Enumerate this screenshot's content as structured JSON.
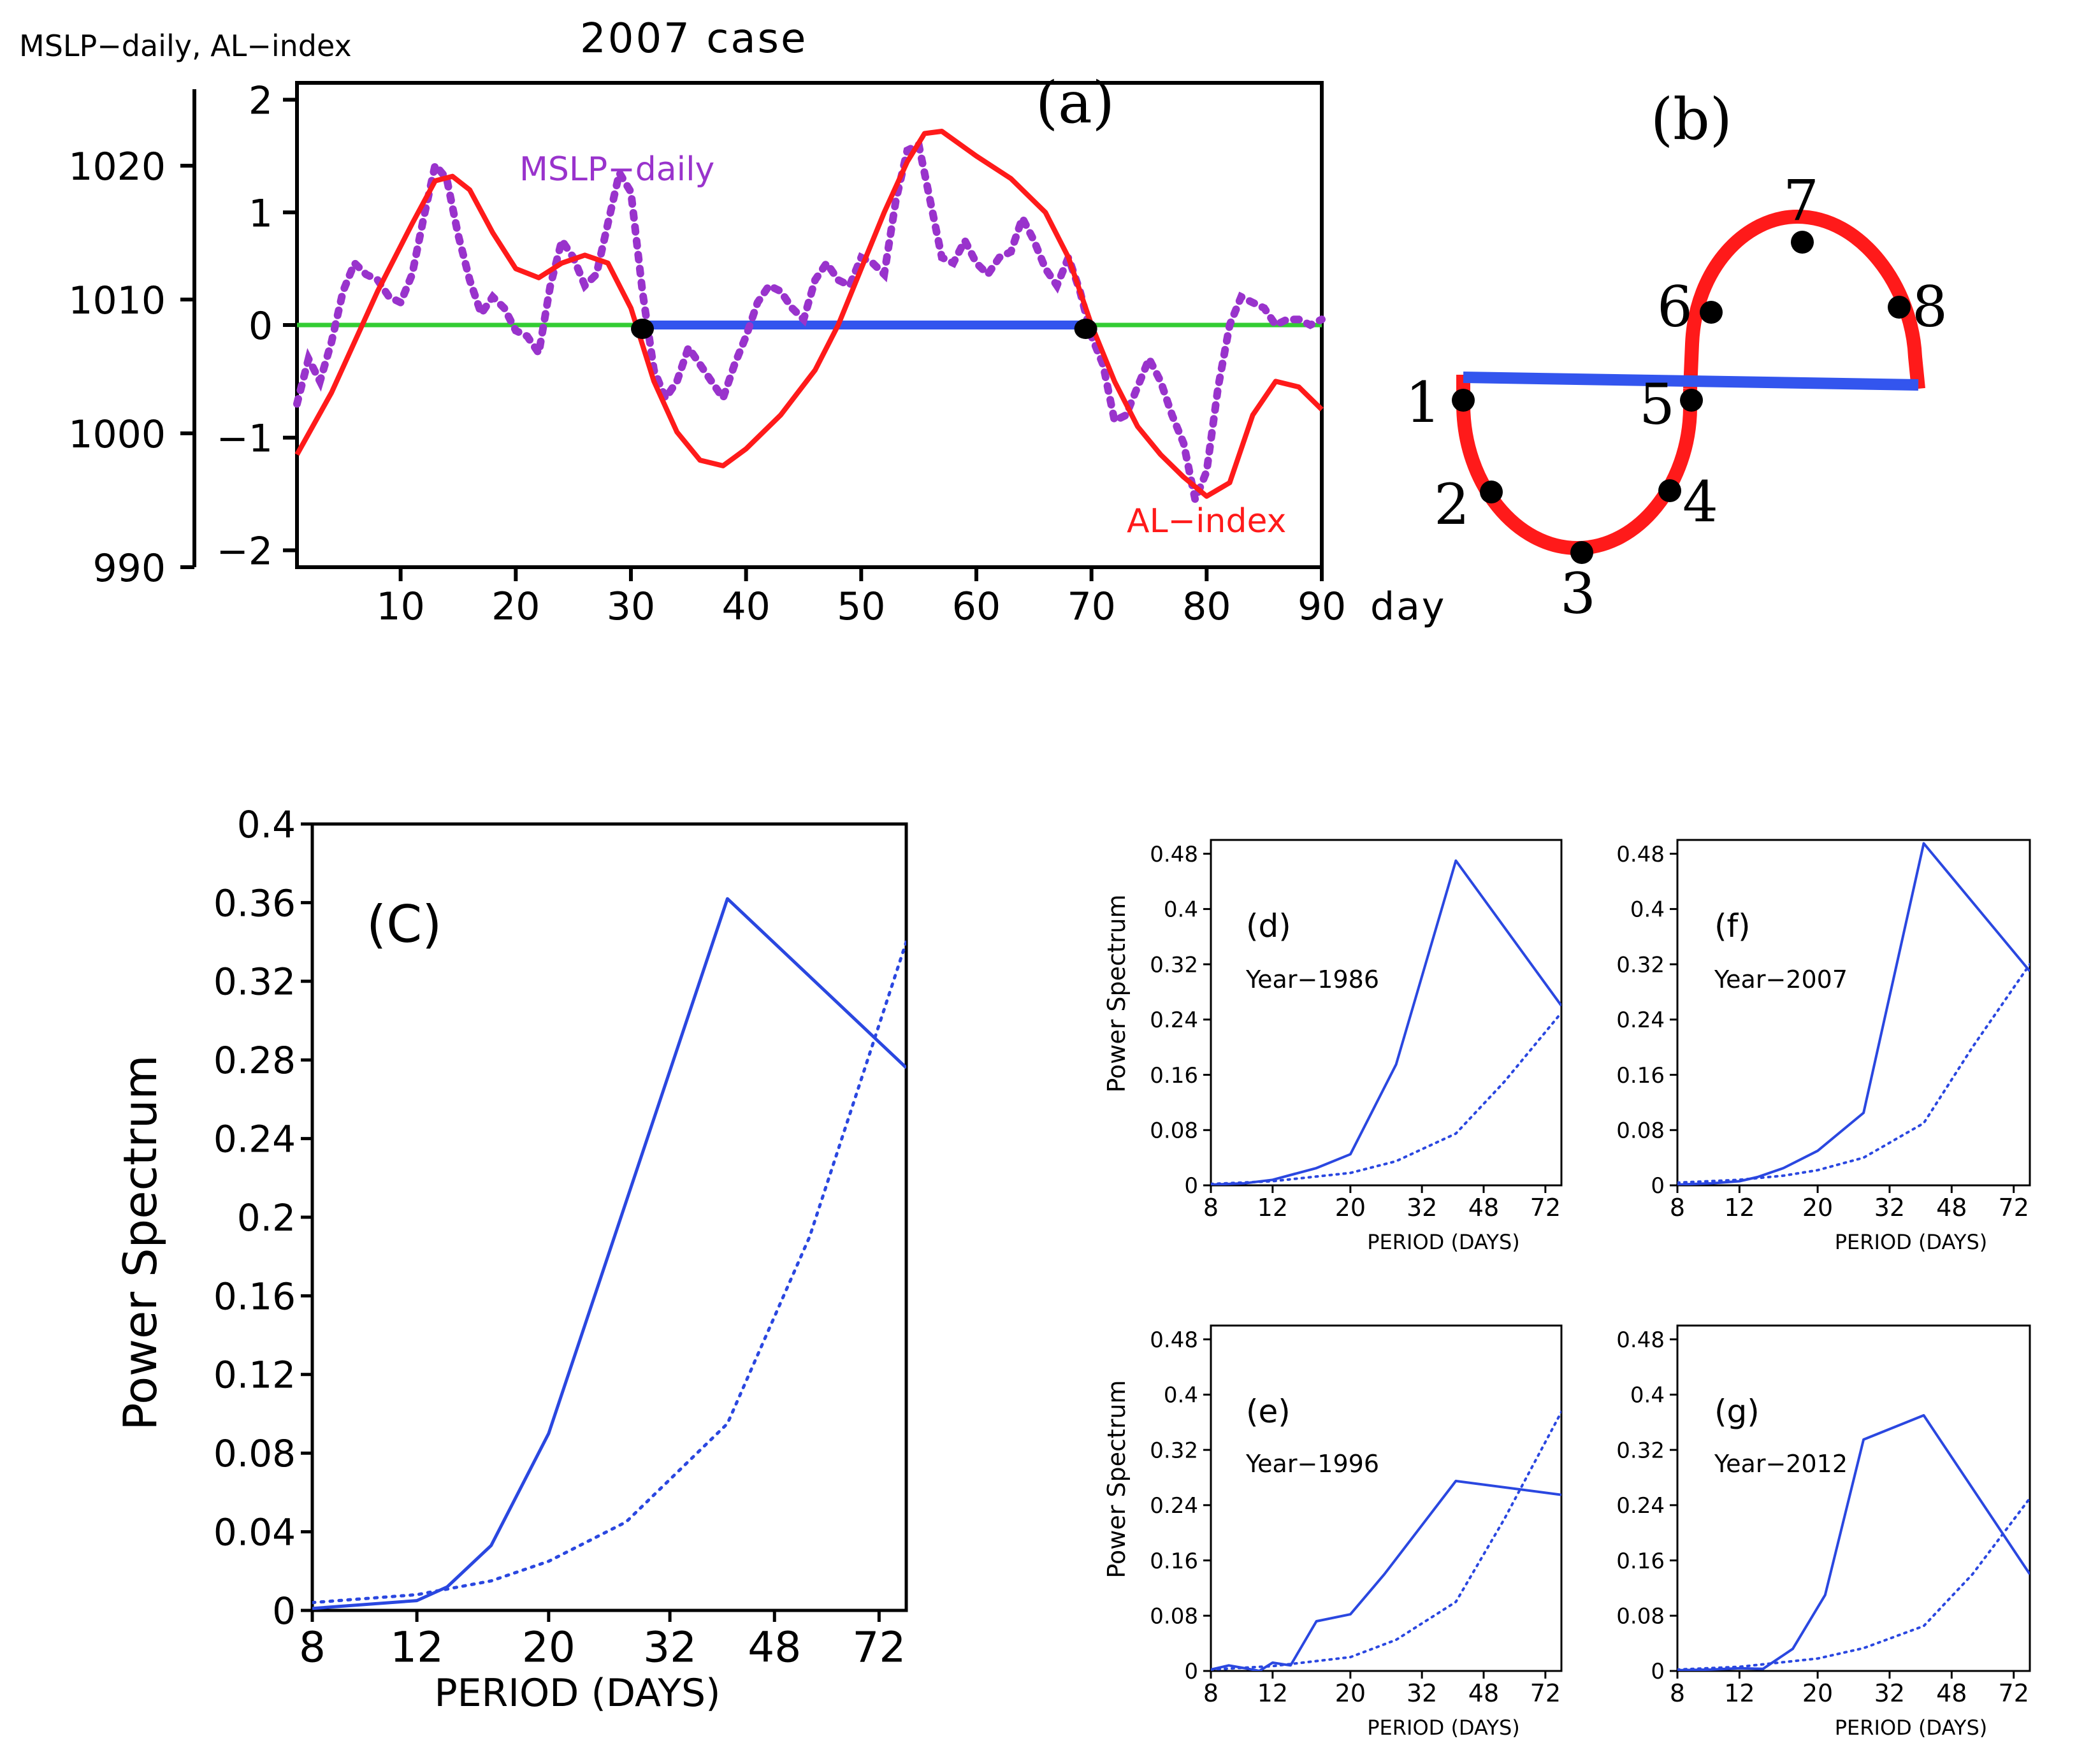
{
  "panel_a": {
    "label": "(a)",
    "title": "2007 case",
    "left_axis_label": "MSLP−daily, AL−index",
    "x_unit": "day",
    "legend_mslp": "MSLP−daily",
    "legend_al": "AL−index",
    "colors": {
      "mslp": "#9933cc",
      "al": "#ff1a1a",
      "zero": "#33cc33",
      "segment": "#3355ee",
      "marker": "#000000"
    }
  },
  "panel_b": {
    "label": "(b)",
    "phase_numbers": [
      "1",
      "2",
      "3",
      "4",
      "5",
      "6",
      "7",
      "8"
    ],
    "colors": {
      "curve": "#ff1a1a",
      "bar": "#3355ee",
      "dot": "#000000"
    }
  },
  "panel_c": {
    "label": "(C)"
  },
  "panel_d": {
    "label": "(d)",
    "year": "Year−1986"
  },
  "panel_e": {
    "label": "(e)",
    "year": "Year−1996"
  },
  "panel_f": {
    "label": "(f)",
    "year": "Year−2007"
  },
  "panel_g": {
    "label": "(g)",
    "year": "Year−2012"
  },
  "chart_data": [
    {
      "id": "a",
      "type": "line",
      "title": "2007 case",
      "xlabel": "day",
      "ylabel": "MSLP−daily, AL−index",
      "xlim": [
        1,
        90
      ],
      "ylim": [
        -2.15,
        2.15
      ],
      "xticks": [
        10,
        20,
        30,
        40,
        50,
        60,
        70,
        80,
        90
      ],
      "yticks": [
        -2,
        -1,
        0,
        1,
        2
      ],
      "yticklabels": [
        "−2",
        "−1",
        "0",
        "1",
        "2"
      ],
      "outer_axis": {
        "ticks": [
          990,
          1000,
          1010,
          1020
        ],
        "labels": [
          "990",
          "1000",
          "1010",
          "1020"
        ]
      },
      "series": [
        {
          "name": "AL−index",
          "style": "solid",
          "x": [
            1,
            4,
            8,
            11,
            13,
            14.5,
            16,
            18,
            20,
            22,
            24,
            26,
            28,
            30,
            32,
            34,
            36,
            38,
            40,
            43,
            46,
            48,
            50,
            52,
            54,
            55.5,
            57,
            60,
            63,
            66,
            68,
            70,
            72,
            74,
            76,
            78,
            80,
            82,
            84,
            86,
            88,
            90
          ],
          "y": [
            -1.15,
            -0.6,
            0.3,
            0.9,
            1.28,
            1.32,
            1.2,
            0.82,
            0.5,
            0.42,
            0.55,
            0.62,
            0.55,
            0.15,
            -0.5,
            -0.95,
            -1.2,
            -1.25,
            -1.1,
            -0.8,
            -0.4,
            0.0,
            0.5,
            1.0,
            1.45,
            1.7,
            1.72,
            1.5,
            1.3,
            1.0,
            0.6,
            0.0,
            -0.5,
            -0.9,
            -1.15,
            -1.35,
            -1.52,
            -1.4,
            -0.8,
            -0.5,
            -0.55,
            -0.75
          ]
        },
        {
          "name": "MSLP−daily",
          "style": "dotted",
          "x": [
            1,
            2,
            3,
            4,
            5,
            6,
            7,
            8,
            9,
            10,
            11,
            12,
            13,
            14,
            15,
            16,
            17,
            18,
            19,
            20,
            21,
            22,
            23,
            24,
            25,
            26,
            27,
            28,
            29,
            30,
            31,
            32,
            33,
            34,
            35,
            36,
            37,
            38,
            39,
            40,
            41,
            42,
            43,
            44,
            45,
            46,
            47,
            48,
            49,
            50,
            51,
            52,
            53,
            54,
            55,
            56,
            57,
            58,
            59,
            60,
            61,
            62,
            63,
            64,
            65,
            66,
            67,
            68,
            69,
            70,
            71,
            72,
            73,
            74,
            75,
            76,
            77,
            78,
            79,
            80,
            81,
            82,
            83,
            84,
            85,
            86,
            87,
            88,
            89,
            90
          ],
          "y": [
            -0.7,
            -0.3,
            -0.5,
            -0.15,
            0.3,
            0.55,
            0.45,
            0.4,
            0.25,
            0.2,
            0.45,
            0.95,
            1.42,
            1.3,
            0.8,
            0.4,
            0.1,
            0.25,
            0.15,
            -0.05,
            -0.1,
            -0.25,
            0.35,
            0.75,
            0.6,
            0.35,
            0.45,
            0.9,
            1.35,
            1.18,
            0.3,
            -0.4,
            -0.65,
            -0.5,
            -0.2,
            -0.35,
            -0.5,
            -0.65,
            -0.35,
            -0.1,
            0.2,
            0.35,
            0.3,
            0.15,
            0.05,
            0.4,
            0.55,
            0.4,
            0.35,
            0.6,
            0.55,
            0.45,
            1.1,
            1.55,
            1.6,
            1.1,
            0.6,
            0.55,
            0.75,
            0.55,
            0.45,
            0.6,
            0.65,
            0.95,
            0.75,
            0.5,
            0.35,
            0.6,
            0.3,
            -0.1,
            -0.35,
            -0.85,
            -0.8,
            -0.55,
            -0.3,
            -0.5,
            -0.8,
            -1.05,
            -1.55,
            -1.3,
            -0.55,
            0.0,
            0.25,
            0.2,
            0.15,
            0.0,
            0.05,
            0.05,
            0.0,
            0.05
          ]
        },
        {
          "name": "zero line",
          "style": "solid",
          "x": [
            1,
            90
          ],
          "y": [
            0,
            0
          ]
        },
        {
          "name": "negative phase",
          "style": "solid",
          "x": [
            31,
            69.5
          ],
          "y": [
            0,
            0
          ]
        }
      ],
      "markers": [
        {
          "x": 31,
          "y": 0
        },
        {
          "x": 69.5,
          "y": 0
        }
      ]
    },
    {
      "id": "c",
      "type": "line",
      "xlabel": "PERIOD (DAYS)",
      "ylabel": "Power Spectrum",
      "xscale": "log",
      "xlim": [
        8,
        80
      ],
      "ylim": [
        0,
        0.4
      ],
      "xticks": [
        8,
        12,
        20,
        32,
        48,
        72
      ],
      "yticks": [
        0,
        0.04,
        0.08,
        0.12,
        0.16,
        0.2,
        0.24,
        0.28,
        0.32,
        0.36,
        0.4
      ],
      "yticklabels": [
        "0",
        "0.04",
        "0.08",
        "0.12",
        "0.16",
        "0.2",
        "0.24",
        "0.28",
        "0.32",
        "0.36",
        "0.4"
      ],
      "series": [
        {
          "name": "spectrum",
          "style": "solid",
          "x": [
            8,
            12,
            13.5,
            16,
            20,
            40,
            80
          ],
          "y": [
            0.001,
            0.005,
            0.012,
            0.033,
            0.09,
            0.362,
            0.276
          ]
        },
        {
          "name": "red noise",
          "style": "dotted",
          "x": [
            8,
            12,
            16,
            20,
            27,
            40,
            55,
            80
          ],
          "y": [
            0.004,
            0.008,
            0.015,
            0.025,
            0.045,
            0.095,
            0.19,
            0.34
          ]
        }
      ]
    },
    {
      "id": "d",
      "type": "line",
      "xlabel": "PERIOD (DAYS)",
      "ylabel": "Power Spectrum",
      "xscale": "log",
      "xlim": [
        8,
        80
      ],
      "ylim": [
        0,
        0.5
      ],
      "xticks": [
        8,
        12,
        20,
        32,
        48,
        72
      ],
      "yticks": [
        0,
        0.08,
        0.16,
        0.24,
        0.32,
        0.4,
        0.48
      ],
      "yticklabels": [
        "0",
        "0.08",
        "0.16",
        "0.24",
        "0.32",
        "0.4",
        "0.48"
      ],
      "series": [
        {
          "name": "spectrum",
          "style": "solid",
          "x": [
            8,
            10,
            12,
            16,
            20,
            27,
            40,
            80
          ],
          "y": [
            0.001,
            0.003,
            0.008,
            0.025,
            0.045,
            0.175,
            0.47,
            0.26
          ]
        },
        {
          "name": "red noise",
          "style": "dotted",
          "x": [
            8,
            12,
            20,
            27,
            40,
            55,
            80
          ],
          "y": [
            0.002,
            0.006,
            0.018,
            0.035,
            0.075,
            0.15,
            0.25
          ]
        }
      ]
    },
    {
      "id": "e",
      "type": "line",
      "xlabel": "PERIOD (DAYS)",
      "ylabel": "Power Spectrum",
      "xscale": "log",
      "xlim": [
        8,
        80
      ],
      "ylim": [
        0,
        0.5
      ],
      "xticks": [
        8,
        12,
        20,
        32,
        48,
        72
      ],
      "yticks": [
        0,
        0.08,
        0.16,
        0.24,
        0.32,
        0.4,
        0.48
      ],
      "yticklabels": [
        "0",
        "0.08",
        "0.16",
        "0.24",
        "0.32",
        "0.4",
        "0.48"
      ],
      "series": [
        {
          "name": "spectrum",
          "style": "solid",
          "x": [
            8,
            9,
            10,
            11,
            12,
            13.5,
            16,
            20,
            25,
            40,
            80
          ],
          "y": [
            0.002,
            0.008,
            0.004,
            0.0,
            0.012,
            0.008,
            0.072,
            0.082,
            0.14,
            0.275,
            0.255
          ]
        },
        {
          "name": "red noise",
          "style": "dotted",
          "x": [
            8,
            12,
            20,
            27,
            40,
            55,
            80
          ],
          "y": [
            0.002,
            0.007,
            0.02,
            0.045,
            0.1,
            0.22,
            0.375
          ]
        }
      ]
    },
    {
      "id": "f",
      "type": "line",
      "xlabel": "PERIOD (DAYS)",
      "ylabel": "",
      "xscale": "log",
      "xlim": [
        8,
        80
      ],
      "ylim": [
        0,
        0.5
      ],
      "xticks": [
        8,
        12,
        20,
        32,
        48,
        72
      ],
      "yticks": [
        0,
        0.08,
        0.16,
        0.24,
        0.32,
        0.4,
        0.48
      ],
      "yticklabels": [
        "0",
        "0.08",
        "0.16",
        "0.24",
        "0.32",
        "0.4",
        "0.48"
      ],
      "series": [
        {
          "name": "spectrum",
          "style": "solid",
          "x": [
            8,
            10,
            12,
            13.5,
            16,
            20,
            27,
            40,
            80
          ],
          "y": [
            0.001,
            0.003,
            0.006,
            0.012,
            0.025,
            0.05,
            0.105,
            0.495,
            0.31
          ]
        },
        {
          "name": "red noise",
          "style": "dotted",
          "x": [
            8,
            12,
            16,
            20,
            27,
            40,
            55,
            80
          ],
          "y": [
            0.004,
            0.008,
            0.014,
            0.022,
            0.04,
            0.09,
            0.2,
            0.32
          ]
        }
      ]
    },
    {
      "id": "g",
      "type": "line",
      "xlabel": "PERIOD (DAYS)",
      "ylabel": "",
      "xscale": "log",
      "xlim": [
        8,
        80
      ],
      "ylim": [
        0,
        0.5
      ],
      "xticks": [
        8,
        12,
        20,
        32,
        48,
        72
      ],
      "yticks": [
        0,
        0.08,
        0.16,
        0.24,
        0.32,
        0.4,
        0.48
      ],
      "yticklabels": [
        "0",
        "0.08",
        "0.16",
        "0.24",
        "0.32",
        "0.4",
        "0.48"
      ],
      "series": [
        {
          "name": "spectrum",
          "style": "solid",
          "x": [
            8,
            10,
            12,
            14,
            17,
            21,
            27,
            40,
            80
          ],
          "y": [
            0.001,
            0.002,
            0.004,
            0.003,
            0.032,
            0.11,
            0.335,
            0.37,
            0.14
          ]
        },
        {
          "name": "red noise",
          "style": "dotted",
          "x": [
            8,
            12,
            20,
            27,
            40,
            55,
            80
          ],
          "y": [
            0.002,
            0.006,
            0.018,
            0.033,
            0.065,
            0.14,
            0.25
          ]
        }
      ]
    }
  ]
}
